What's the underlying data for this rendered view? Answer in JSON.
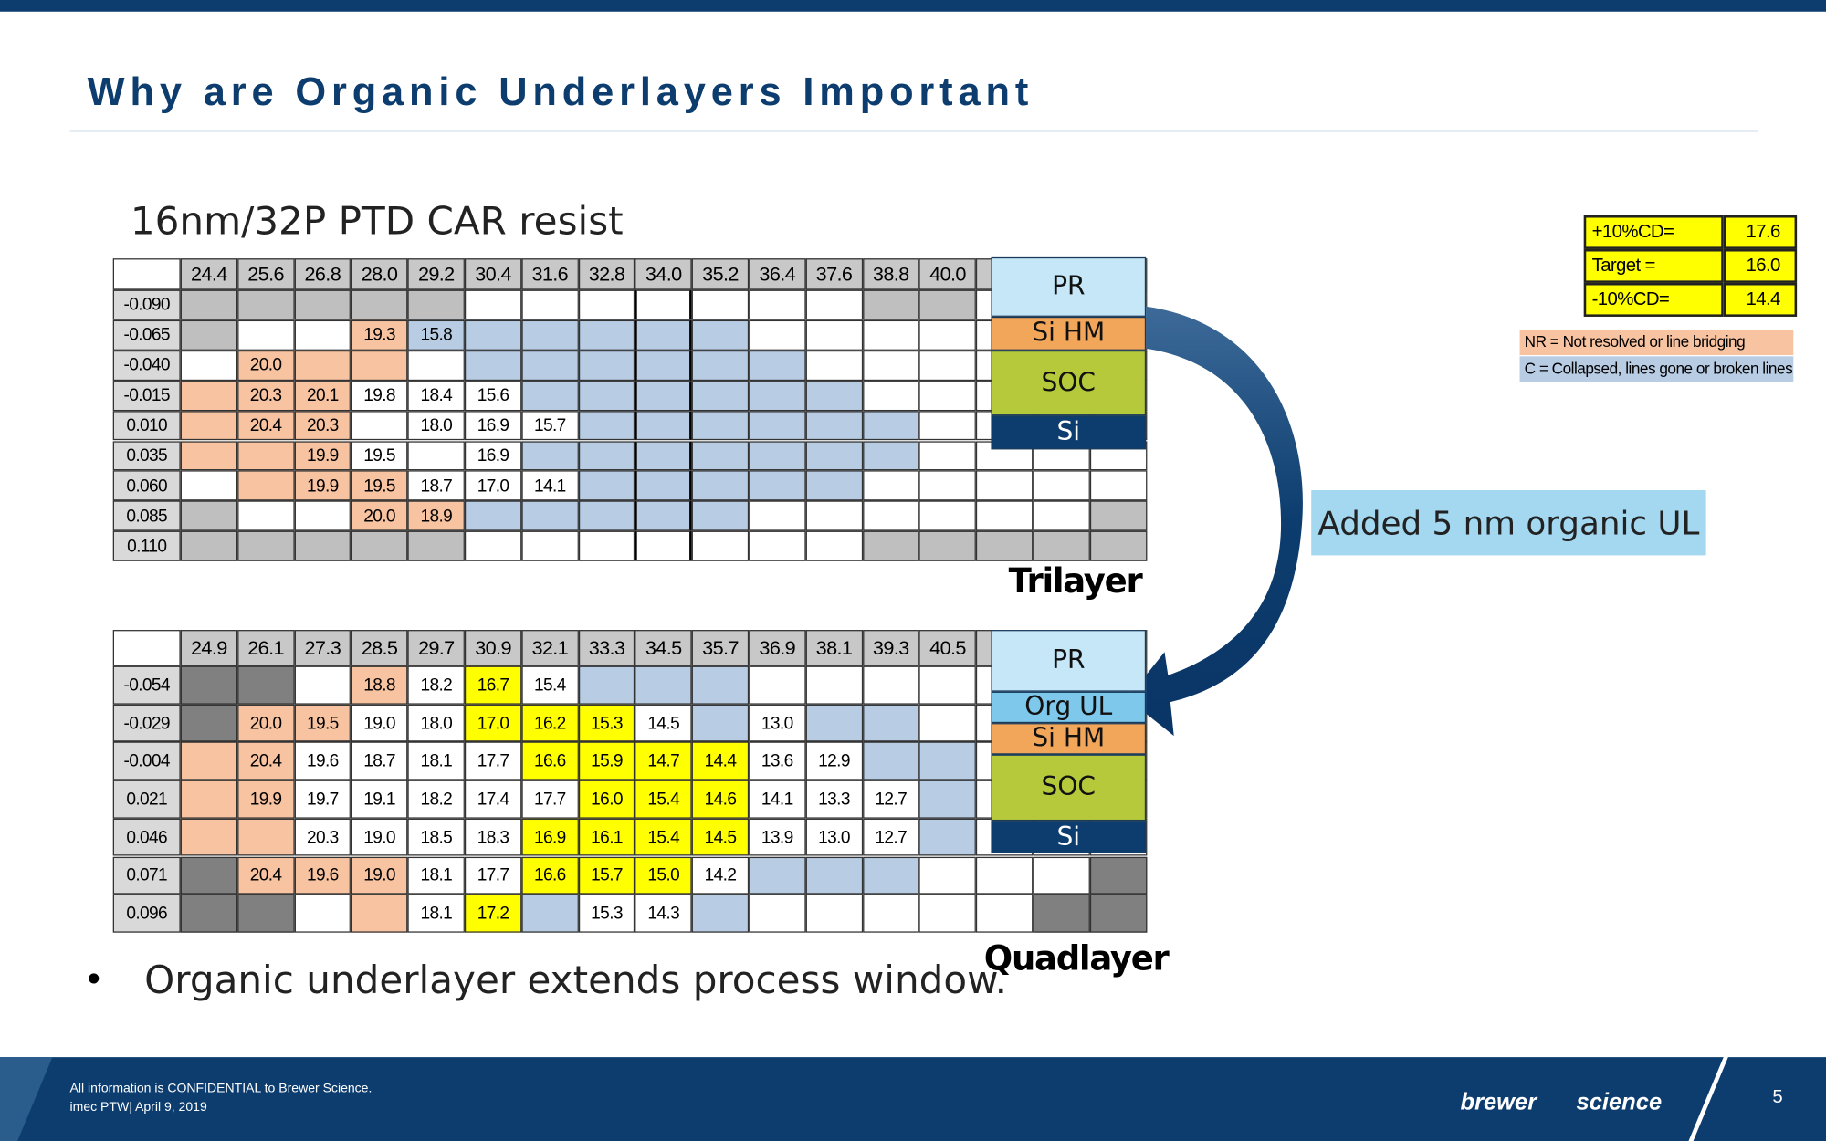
{
  "header": {
    "title": "Why are Organic Underlayers Important"
  },
  "subtitle": "16nm/32P PTD CAR resist",
  "tables": [
    {
      "caption": "Trilayer",
      "columns": [
        "24.4",
        "25.6",
        "26.8",
        "28.0",
        "29.2",
        "30.4",
        "31.6",
        "32.8",
        "34.0",
        "35.2",
        "36.4",
        "37.6",
        "38.8",
        "40.0",
        null,
        null,
        null
      ],
      "rows": [
        {
          "label": "-0.090",
          "fill": "gggggwwwwwwwggwww",
          "values": [
            null,
            null,
            null,
            null,
            null,
            null,
            null,
            null,
            null,
            null,
            null,
            null,
            null,
            null,
            null,
            null,
            null
          ]
        },
        {
          "label": "-0.065",
          "fill": "gwwobbbbbbwwwwwww",
          "values": [
            null,
            null,
            null,
            "19.3",
            "15.8",
            null,
            null,
            null,
            null,
            null,
            null,
            null,
            null,
            null,
            null,
            null,
            null
          ]
        },
        {
          "label": "-0.040",
          "fill": "wooowbbbbbbwwwwww",
          "values": [
            null,
            "20.0",
            null,
            null,
            null,
            null,
            null,
            null,
            null,
            null,
            null,
            null,
            null,
            null,
            null,
            null,
            null
          ]
        },
        {
          "label": "-0.015",
          "fill": "ooowwwbbbbbbwwwww",
          "values": [
            null,
            "20.3",
            "20.1",
            "19.8",
            "18.4",
            "15.6",
            null,
            null,
            null,
            null,
            null,
            null,
            null,
            null,
            null,
            null,
            null
          ]
        },
        {
          "label": "0.010",
          "fill": "ooowwwwbbbbbbwwww",
          "values": [
            null,
            "20.4",
            "20.3",
            null,
            "18.0",
            "16.9",
            "15.7",
            null,
            null,
            null,
            null,
            null,
            null,
            null,
            null,
            null,
            null
          ]
        },
        {
          "label": "0.035",
          "fill": "ooowwwbbbbbbbwwww",
          "values": [
            null,
            null,
            "19.9",
            "19.5",
            null,
            "16.9",
            null,
            null,
            null,
            null,
            null,
            null,
            null,
            null,
            null,
            null,
            null
          ]
        },
        {
          "label": "0.060",
          "fill": "wooowwwbbbbbwwwww",
          "values": [
            null,
            null,
            "19.9",
            "19.5",
            "18.7",
            "17.0",
            "14.1",
            null,
            null,
            null,
            null,
            null,
            null,
            null,
            null,
            null,
            null
          ]
        },
        {
          "label": "0.085",
          "fill": "gwwoobbbbbwwwwwwg",
          "values": [
            null,
            null,
            null,
            "20.0",
            "18.9",
            null,
            null,
            null,
            null,
            null,
            null,
            null,
            null,
            null,
            null,
            null,
            null
          ]
        },
        {
          "label": "0.110",
          "fill": "gggggwwwwwwwggggg",
          "values": [
            null,
            null,
            null,
            null,
            null,
            null,
            null,
            null,
            null,
            null,
            null,
            null,
            null,
            null,
            null,
            null,
            null
          ]
        }
      ]
    },
    {
      "caption": "Quadlayer",
      "columns": [
        "24.9",
        "26.1",
        "27.3",
        "28.5",
        "29.7",
        "30.9",
        "32.1",
        "33.3",
        "34.5",
        "35.7",
        "36.9",
        "38.1",
        "39.3",
        "40.5",
        null,
        null,
        null
      ],
      "rows": [
        {
          "label": "-0.054",
          "fill": "ddwowywbbbwwwwwww",
          "values": [
            null,
            null,
            null,
            "18.8",
            "18.2",
            "16.7",
            "15.4",
            null,
            null,
            null,
            null,
            null,
            null,
            null,
            null,
            null,
            null
          ]
        },
        {
          "label": "-0.029",
          "fill": "doowwyyywbwbbwwww",
          "values": [
            null,
            "20.0",
            "19.5",
            "19.0",
            "18.0",
            "17.0",
            "16.2",
            "15.3",
            "14.5",
            null,
            "13.0",
            null,
            null,
            null,
            null,
            null,
            null
          ]
        },
        {
          "label": "-0.004",
          "fill": "oowwwwyyyywwbbwww",
          "values": [
            null,
            "20.4",
            "19.6",
            "18.7",
            "18.1",
            "17.7",
            "16.6",
            "15.9",
            "14.7",
            "14.4",
            "13.6",
            "12.9",
            null,
            null,
            null,
            null,
            null
          ]
        },
        {
          "label": "0.021",
          "fill": "oowwwwwyyywwwbwww",
          "values": [
            null,
            "19.9",
            "19.7",
            "19.1",
            "18.2",
            "17.4",
            "17.7",
            "16.0",
            "15.4",
            "14.6",
            "14.1",
            "13.3",
            "12.7",
            null,
            null,
            null,
            null
          ]
        },
        {
          "label": "0.046",
          "fill": "oowwwwyyyywwwbwww",
          "values": [
            null,
            null,
            "20.3",
            "19.0",
            "18.5",
            "18.3",
            "16.9",
            "16.1",
            "15.4",
            "14.5",
            "13.9",
            "13.0",
            "12.7",
            null,
            null,
            null,
            null
          ]
        },
        {
          "label": "0.071",
          "fill": "dooowwyyywbbbwwwd",
          "values": [
            null,
            "20.4",
            "19.6",
            "19.0",
            "18.1",
            "17.7",
            "16.6",
            "15.7",
            "15.0",
            "14.2",
            null,
            null,
            null,
            null,
            null,
            null,
            null
          ]
        },
        {
          "label": "0.096",
          "fill": "ddwowybwwbwwwwwdd",
          "values": [
            null,
            null,
            null,
            null,
            "18.1",
            "17.2",
            null,
            "15.3",
            "14.3",
            null,
            null,
            null,
            null,
            null,
            null,
            null,
            null
          ]
        }
      ]
    }
  ],
  "stacks": [
    {
      "layers": [
        "PR",
        "Si HM",
        "SOC",
        "Si"
      ]
    },
    {
      "layers": [
        "PR",
        "Org UL",
        "Si HM",
        "SOC",
        "Si"
      ]
    }
  ],
  "legend": {
    "rows": [
      [
        "+10%CD=",
        "17.6"
      ],
      [
        "Target =",
        "16.0"
      ],
      [
        "-10%CD=",
        "14.4"
      ]
    ],
    "notes": [
      "NR = Not resolved or line bridging",
      "C = Collapsed, lines gone or broken lines"
    ]
  },
  "callout": "Added 5 nm organic UL",
  "bullets": [
    "Organic underlayer extends process window."
  ],
  "footer": {
    "lines": [
      "All information is CONFIDENTIAL to Brewer Science.",
      "imec PTW| April 9, 2019"
    ],
    "logo": [
      "brewer",
      "science"
    ],
    "page": "5"
  }
}
